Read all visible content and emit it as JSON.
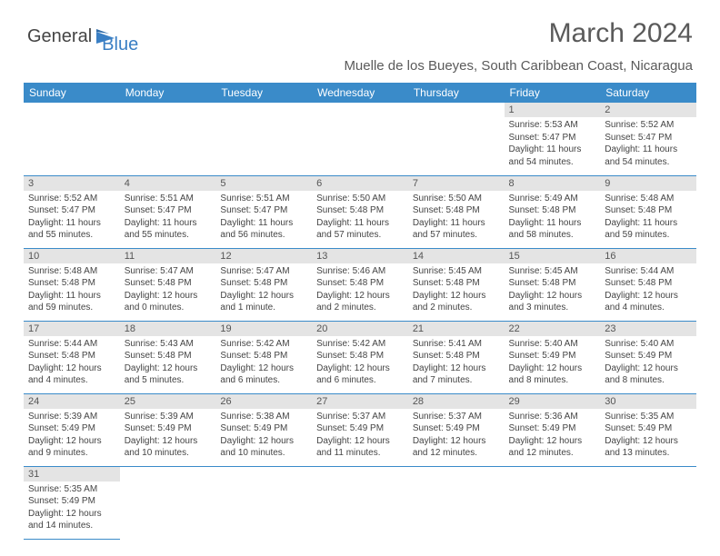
{
  "logo": {
    "part1": "General",
    "part2": "Blue"
  },
  "title": "March 2024",
  "location": "Muelle de los Bueyes, South Caribbean Coast, Nicaragua",
  "colors": {
    "header_bg": "#3a8bc9",
    "header_text": "#ffffff",
    "daynum_bg": "#e4e4e4",
    "border": "#3a8bc9",
    "logo_gray": "#444444",
    "logo_blue": "#3a7fc4"
  },
  "day_headers": [
    "Sunday",
    "Monday",
    "Tuesday",
    "Wednesday",
    "Thursday",
    "Friday",
    "Saturday"
  ],
  "weeks": [
    [
      null,
      null,
      null,
      null,
      null,
      {
        "n": "1",
        "sr": "Sunrise: 5:53 AM",
        "ss": "Sunset: 5:47 PM",
        "dl1": "Daylight: 11 hours",
        "dl2": "and 54 minutes."
      },
      {
        "n": "2",
        "sr": "Sunrise: 5:52 AM",
        "ss": "Sunset: 5:47 PM",
        "dl1": "Daylight: 11 hours",
        "dl2": "and 54 minutes."
      }
    ],
    [
      {
        "n": "3",
        "sr": "Sunrise: 5:52 AM",
        "ss": "Sunset: 5:47 PM",
        "dl1": "Daylight: 11 hours",
        "dl2": "and 55 minutes."
      },
      {
        "n": "4",
        "sr": "Sunrise: 5:51 AM",
        "ss": "Sunset: 5:47 PM",
        "dl1": "Daylight: 11 hours",
        "dl2": "and 55 minutes."
      },
      {
        "n": "5",
        "sr": "Sunrise: 5:51 AM",
        "ss": "Sunset: 5:47 PM",
        "dl1": "Daylight: 11 hours",
        "dl2": "and 56 minutes."
      },
      {
        "n": "6",
        "sr": "Sunrise: 5:50 AM",
        "ss": "Sunset: 5:48 PM",
        "dl1": "Daylight: 11 hours",
        "dl2": "and 57 minutes."
      },
      {
        "n": "7",
        "sr": "Sunrise: 5:50 AM",
        "ss": "Sunset: 5:48 PM",
        "dl1": "Daylight: 11 hours",
        "dl2": "and 57 minutes."
      },
      {
        "n": "8",
        "sr": "Sunrise: 5:49 AM",
        "ss": "Sunset: 5:48 PM",
        "dl1": "Daylight: 11 hours",
        "dl2": "and 58 minutes."
      },
      {
        "n": "9",
        "sr": "Sunrise: 5:48 AM",
        "ss": "Sunset: 5:48 PM",
        "dl1": "Daylight: 11 hours",
        "dl2": "and 59 minutes."
      }
    ],
    [
      {
        "n": "10",
        "sr": "Sunrise: 5:48 AM",
        "ss": "Sunset: 5:48 PM",
        "dl1": "Daylight: 11 hours",
        "dl2": "and 59 minutes."
      },
      {
        "n": "11",
        "sr": "Sunrise: 5:47 AM",
        "ss": "Sunset: 5:48 PM",
        "dl1": "Daylight: 12 hours",
        "dl2": "and 0 minutes."
      },
      {
        "n": "12",
        "sr": "Sunrise: 5:47 AM",
        "ss": "Sunset: 5:48 PM",
        "dl1": "Daylight: 12 hours",
        "dl2": "and 1 minute."
      },
      {
        "n": "13",
        "sr": "Sunrise: 5:46 AM",
        "ss": "Sunset: 5:48 PM",
        "dl1": "Daylight: 12 hours",
        "dl2": "and 2 minutes."
      },
      {
        "n": "14",
        "sr": "Sunrise: 5:45 AM",
        "ss": "Sunset: 5:48 PM",
        "dl1": "Daylight: 12 hours",
        "dl2": "and 2 minutes."
      },
      {
        "n": "15",
        "sr": "Sunrise: 5:45 AM",
        "ss": "Sunset: 5:48 PM",
        "dl1": "Daylight: 12 hours",
        "dl2": "and 3 minutes."
      },
      {
        "n": "16",
        "sr": "Sunrise: 5:44 AM",
        "ss": "Sunset: 5:48 PM",
        "dl1": "Daylight: 12 hours",
        "dl2": "and 4 minutes."
      }
    ],
    [
      {
        "n": "17",
        "sr": "Sunrise: 5:44 AM",
        "ss": "Sunset: 5:48 PM",
        "dl1": "Daylight: 12 hours",
        "dl2": "and 4 minutes."
      },
      {
        "n": "18",
        "sr": "Sunrise: 5:43 AM",
        "ss": "Sunset: 5:48 PM",
        "dl1": "Daylight: 12 hours",
        "dl2": "and 5 minutes."
      },
      {
        "n": "19",
        "sr": "Sunrise: 5:42 AM",
        "ss": "Sunset: 5:48 PM",
        "dl1": "Daylight: 12 hours",
        "dl2": "and 6 minutes."
      },
      {
        "n": "20",
        "sr": "Sunrise: 5:42 AM",
        "ss": "Sunset: 5:48 PM",
        "dl1": "Daylight: 12 hours",
        "dl2": "and 6 minutes."
      },
      {
        "n": "21",
        "sr": "Sunrise: 5:41 AM",
        "ss": "Sunset: 5:48 PM",
        "dl1": "Daylight: 12 hours",
        "dl2": "and 7 minutes."
      },
      {
        "n": "22",
        "sr": "Sunrise: 5:40 AM",
        "ss": "Sunset: 5:49 PM",
        "dl1": "Daylight: 12 hours",
        "dl2": "and 8 minutes."
      },
      {
        "n": "23",
        "sr": "Sunrise: 5:40 AM",
        "ss": "Sunset: 5:49 PM",
        "dl1": "Daylight: 12 hours",
        "dl2": "and 8 minutes."
      }
    ],
    [
      {
        "n": "24",
        "sr": "Sunrise: 5:39 AM",
        "ss": "Sunset: 5:49 PM",
        "dl1": "Daylight: 12 hours",
        "dl2": "and 9 minutes."
      },
      {
        "n": "25",
        "sr": "Sunrise: 5:39 AM",
        "ss": "Sunset: 5:49 PM",
        "dl1": "Daylight: 12 hours",
        "dl2": "and 10 minutes."
      },
      {
        "n": "26",
        "sr": "Sunrise: 5:38 AM",
        "ss": "Sunset: 5:49 PM",
        "dl1": "Daylight: 12 hours",
        "dl2": "and 10 minutes."
      },
      {
        "n": "27",
        "sr": "Sunrise: 5:37 AM",
        "ss": "Sunset: 5:49 PM",
        "dl1": "Daylight: 12 hours",
        "dl2": "and 11 minutes."
      },
      {
        "n": "28",
        "sr": "Sunrise: 5:37 AM",
        "ss": "Sunset: 5:49 PM",
        "dl1": "Daylight: 12 hours",
        "dl2": "and 12 minutes."
      },
      {
        "n": "29",
        "sr": "Sunrise: 5:36 AM",
        "ss": "Sunset: 5:49 PM",
        "dl1": "Daylight: 12 hours",
        "dl2": "and 12 minutes."
      },
      {
        "n": "30",
        "sr": "Sunrise: 5:35 AM",
        "ss": "Sunset: 5:49 PM",
        "dl1": "Daylight: 12 hours",
        "dl2": "and 13 minutes."
      }
    ],
    [
      {
        "n": "31",
        "sr": "Sunrise: 5:35 AM",
        "ss": "Sunset: 5:49 PM",
        "dl1": "Daylight: 12 hours",
        "dl2": "and 14 minutes."
      },
      null,
      null,
      null,
      null,
      null,
      null
    ]
  ]
}
